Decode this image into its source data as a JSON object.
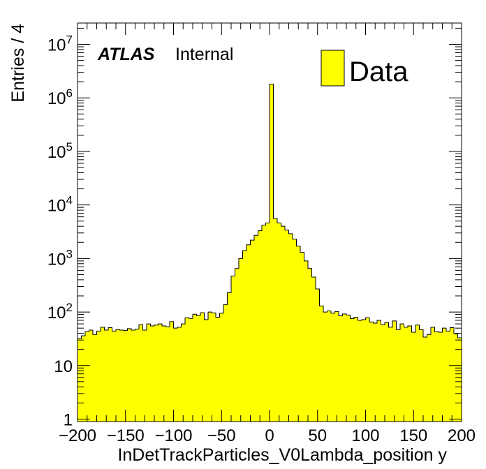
{
  "chart_data": {
    "type": "histogram",
    "title": "",
    "xlabel": "InDetTrackParticles_V0Lambda_position y",
    "ylabel": "Entries / 4",
    "xlim": [
      -200,
      200
    ],
    "ylim": [
      0.9,
      25000000
    ],
    "yscale": "log",
    "bin_width": 4,
    "x_bin_low_edges": [
      -200,
      -196,
      -192,
      -188,
      -184,
      -180,
      -176,
      -172,
      -168,
      -164,
      -160,
      -156,
      -152,
      -148,
      -144,
      -140,
      -136,
      -132,
      -128,
      -124,
      -120,
      -116,
      -112,
      -108,
      -104,
      -100,
      -96,
      -92,
      -88,
      -84,
      -80,
      -76,
      -72,
      -68,
      -64,
      -60,
      -56,
      -52,
      -48,
      -44,
      -40,
      -36,
      -32,
      -28,
      -24,
      -20,
      -16,
      -12,
      -8,
      -4,
      0,
      4,
      8,
      12,
      16,
      20,
      24,
      28,
      32,
      36,
      40,
      44,
      48,
      52,
      56,
      60,
      64,
      68,
      72,
      76,
      80,
      84,
      88,
      92,
      96,
      100,
      104,
      108,
      112,
      116,
      120,
      124,
      128,
      132,
      136,
      140,
      144,
      148,
      152,
      156,
      160,
      164,
      168,
      172,
      176,
      180,
      184,
      188,
      192,
      196
    ],
    "series": [
      {
        "name": "Data",
        "color": "#ffff00",
        "values": [
          32,
          36,
          43,
          46,
          38,
          44,
          52,
          46,
          51,
          44,
          47,
          46,
          45,
          49,
          46,
          48,
          58,
          46,
          60,
          55,
          57,
          60,
          55,
          53,
          66,
          50,
          52,
          60,
          78,
          76,
          91,
          86,
          97,
          72,
          100,
          96,
          80,
          95,
          137,
          230,
          470,
          650,
          1000,
          1400,
          1800,
          2200,
          2700,
          3300,
          4200,
          4600,
          1800000,
          5600,
          4600,
          4000,
          3400,
          2900,
          2300,
          1700,
          1300,
          900,
          650,
          450,
          270,
          130,
          100,
          105,
          95,
          102,
          85,
          92,
          88,
          75,
          80,
          70,
          72,
          78,
          65,
          62,
          70,
          58,
          64,
          52,
          68,
          47,
          60,
          52,
          55,
          42,
          57,
          47,
          34,
          38,
          52,
          43,
          42,
          50,
          44,
          51,
          39,
          33
        ]
      }
    ],
    "x_ticks": [
      -200,
      -150,
      -100,
      -50,
      0,
      50,
      100,
      150,
      200
    ],
    "y_ticks": [
      {
        "value": 1,
        "label": "1"
      },
      {
        "value": 10,
        "label": "10"
      },
      {
        "value": 100,
        "label": "10",
        "exp": "2"
      },
      {
        "value": 1000,
        "label": "10",
        "exp": "3"
      },
      {
        "value": 10000,
        "label": "10",
        "exp": "4"
      },
      {
        "value": 100000,
        "label": "10",
        "exp": "5"
      },
      {
        "value": 1000000,
        "label": "10",
        "exp": "6"
      },
      {
        "value": 10000000,
        "label": "10",
        "exp": "7"
      }
    ],
    "legend": {
      "label": "Data",
      "position": "top-right"
    },
    "annotation": {
      "bold": "ATLAS",
      "normal": "Internal"
    }
  }
}
